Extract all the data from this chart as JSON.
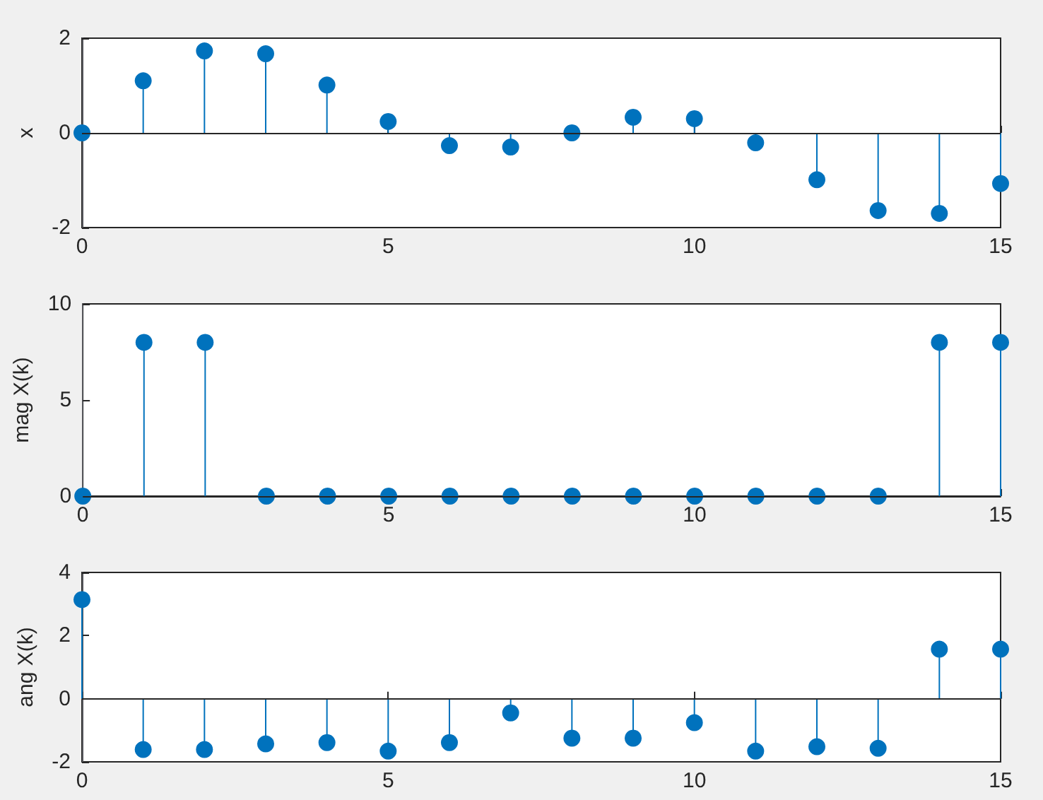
{
  "chart_data": [
    {
      "type": "lollipop",
      "ylabel": "x",
      "x": [
        0,
        1,
        2,
        3,
        4,
        5,
        6,
        7,
        8,
        9,
        10,
        11,
        12,
        13,
        14,
        15
      ],
      "values": [
        0,
        1.1,
        1.73,
        1.67,
        1.01,
        0.24,
        -0.27,
        -0.3,
        0,
        0.33,
        0.3,
        -0.21,
        -0.99,
        -1.64,
        -1.7,
        -1.07
      ],
      "color": "#0072bd",
      "marker": "circle",
      "xlim": [
        0,
        15
      ],
      "xticks": [
        0,
        5,
        10,
        15
      ],
      "ylim": [
        -2,
        2
      ],
      "yticks": [
        -2,
        0,
        2
      ]
    },
    {
      "type": "lollipop",
      "ylabel": "mag X(k)",
      "x": [
        0,
        1,
        2,
        3,
        4,
        5,
        6,
        7,
        8,
        9,
        10,
        11,
        12,
        13,
        14,
        15
      ],
      "values": [
        0,
        8,
        8,
        0,
        0,
        0,
        0,
        0,
        0,
        0,
        0,
        0,
        0,
        0,
        8,
        8
      ],
      "color": "#0072bd",
      "marker": "circle",
      "xlim": [
        0,
        15
      ],
      "xticks": [
        0,
        5,
        10,
        15
      ],
      "ylim": [
        0,
        10
      ],
      "yticks": [
        0,
        5,
        10
      ]
    },
    {
      "type": "lollipop",
      "ylabel": "ang X(k)",
      "x": [
        0,
        1,
        2,
        3,
        4,
        5,
        6,
        7,
        8,
        9,
        10,
        11,
        12,
        13,
        14,
        15
      ],
      "values": [
        3.14,
        -1.61,
        -1.61,
        -1.43,
        -1.39,
        -1.66,
        -1.39,
        -0.45,
        -1.25,
        -1.25,
        -0.76,
        -1.66,
        -1.52,
        -1.57,
        1.57,
        1.57
      ],
      "color": "#0072bd",
      "marker": "circle",
      "xlim": [
        0,
        15
      ],
      "xticks": [
        0,
        5,
        10,
        15
      ],
      "ylim": [
        -2,
        4
      ],
      "yticks": [
        -2,
        0,
        2,
        4
      ]
    }
  ]
}
